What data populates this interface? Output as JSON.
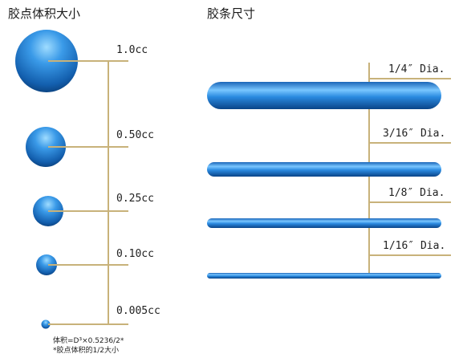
{
  "left_panel": {
    "title": "胶点体积大小",
    "items": [
      {
        "label": "1.0cc"
      },
      {
        "label": "0.50cc"
      },
      {
        "label": "0.25cc"
      },
      {
        "label": "0.10cc"
      },
      {
        "label": "0.005cc"
      }
    ],
    "formula_line1": "体积=D³×0.5236/2*",
    "formula_line2": "*胶点体积的1/2大小"
  },
  "right_panel": {
    "title": "胶条尺寸",
    "items": [
      {
        "label": "1/4″ Dia."
      },
      {
        "label": "3/16″ Dia."
      },
      {
        "label": "1/8″ Dia."
      },
      {
        "label": "1/16″ Dia."
      }
    ]
  },
  "colors": {
    "glue_dark": "#0a4a8a",
    "glue_mid": "#1e7fd0",
    "glue_light": "#8fd0ff",
    "leader_line": "#c8b27a"
  }
}
